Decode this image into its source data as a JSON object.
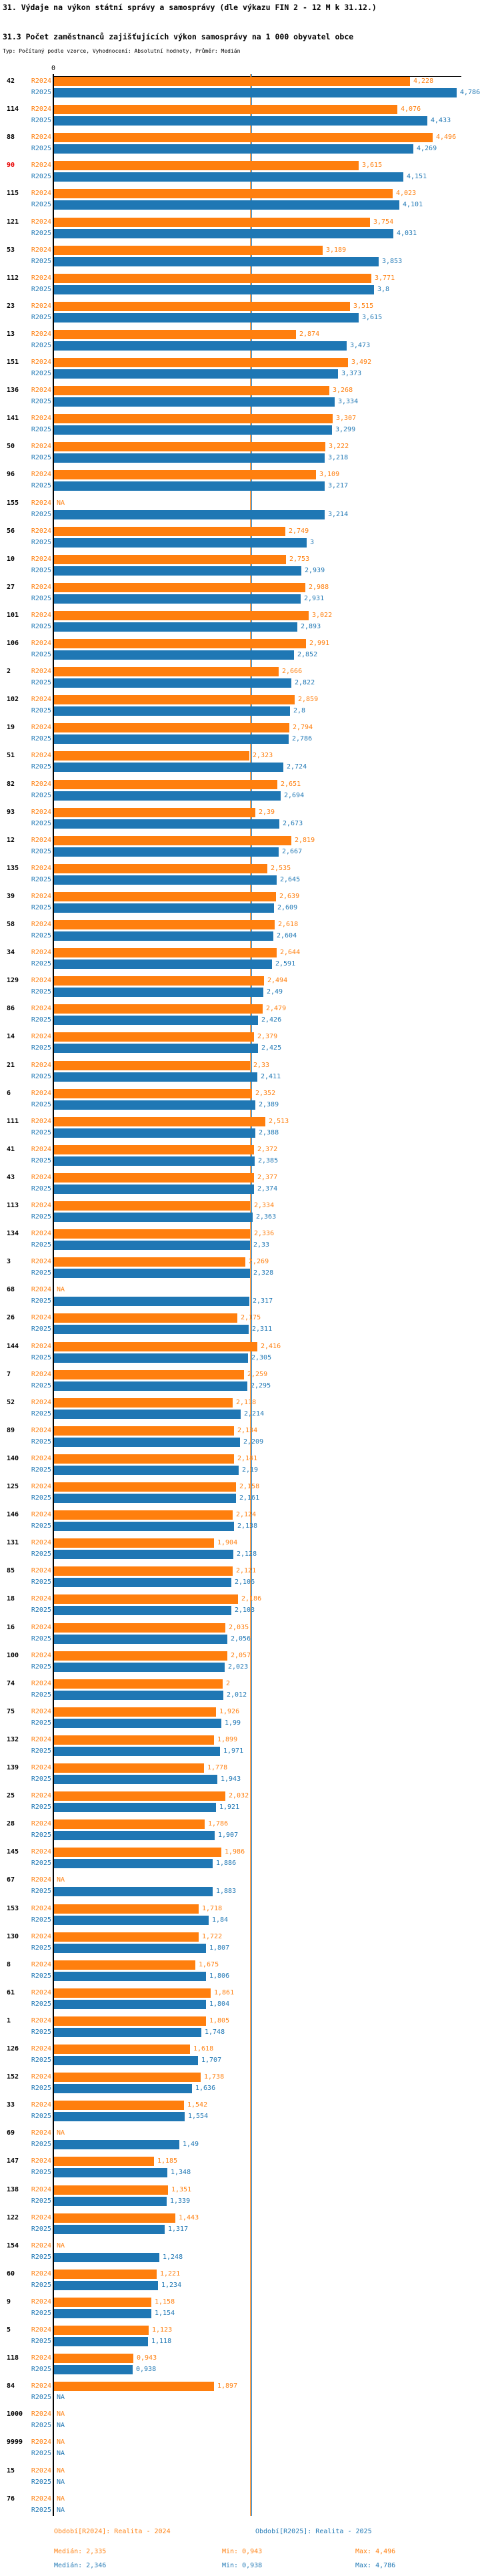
{
  "header": {
    "title": "31. Výdaje na výkon státní správy a samosprávy (dle výkazu FIN 2 - 12 M k 31.12.)",
    "subtitle": "31.3 Počet zaměstnanců zajišťujících výkon samosprávy na 1 000 obyvatel obce",
    "type_line": "Typ: Počítaný podle vzorce, Vyhodnocení: Absolutní hodnoty, Průměr: Medián"
  },
  "axis": {
    "zero_label": "0"
  },
  "colors": {
    "r2024_orange": "#ff7f0e",
    "r2025_blue": "#1f77b4",
    "highlight_red": "#e80000",
    "axis_black": "#000000"
  },
  "na_text": "NA",
  "chart_data": {
    "type": "bar",
    "orientation": "horizontal",
    "title": "31.3 Počet zaměstnanců zajišťujících výkon samosprávy na 1 000 obyvatel obce",
    "xlabel": "",
    "ylabel": "",
    "xlim": [
      0,
      5.3
    ],
    "grid": false,
    "sort": "descending by R2025",
    "highlighted_category": "90",
    "categories": [
      "42",
      "114",
      "88",
      "90",
      "115",
      "121",
      "53",
      "112",
      "23",
      "13",
      "151",
      "136",
      "141",
      "50",
      "96",
      "155",
      "56",
      "10",
      "27",
      "101",
      "106",
      "2",
      "102",
      "19",
      "51",
      "82",
      "93",
      "12",
      "135",
      "39",
      "58",
      "34",
      "129",
      "86",
      "14",
      "21",
      "6",
      "111",
      "41",
      "43",
      "113",
      "134",
      "3",
      "68",
      "26",
      "144",
      "7",
      "52",
      "89",
      "140",
      "125",
      "146",
      "131",
      "85",
      "18",
      "16",
      "100",
      "74",
      "75",
      "132",
      "139",
      "25",
      "28",
      "145",
      "67",
      "153",
      "130",
      "8",
      "61",
      "1",
      "126",
      "152",
      "33",
      "69",
      "147",
      "138",
      "122",
      "154",
      "60",
      "9",
      "5",
      "118",
      "84",
      "1000",
      "9999",
      "15",
      "76"
    ],
    "series": [
      {
        "name": "R2024",
        "period": "Realita - 2024",
        "color": "#ff7f0e",
        "values": [
          4.228,
          4.076,
          4.496,
          3.615,
          4.023,
          3.754,
          3.189,
          3.771,
          3.515,
          2.874,
          3.492,
          3.268,
          3.307,
          3.222,
          3.109,
          null,
          2.749,
          2.753,
          2.988,
          3.022,
          2.991,
          2.666,
          2.859,
          2.794,
          2.323,
          2.651,
          2.39,
          2.819,
          2.535,
          2.639,
          2.618,
          2.644,
          2.494,
          2.479,
          2.379,
          2.33,
          2.352,
          2.513,
          2.372,
          2.377,
          2.334,
          2.336,
          2.269,
          null,
          2.175,
          2.416,
          2.259,
          2.118,
          2.134,
          2.141,
          2.158,
          2.124,
          1.904,
          2.121,
          2.186,
          2.035,
          2.057,
          2.0,
          1.926,
          1.899,
          1.778,
          2.032,
          1.786,
          1.986,
          null,
          1.718,
          1.722,
          1.675,
          1.861,
          1.805,
          1.618,
          1.738,
          1.542,
          null,
          1.185,
          1.351,
          1.443,
          null,
          1.221,
          1.158,
          1.123,
          0.943,
          1.897,
          null,
          null,
          null,
          null
        ],
        "labels": [
          "4,228",
          "4,076",
          "4,496",
          "3,615",
          "4,023",
          "3,754",
          "3,189",
          "3,771",
          "3,515",
          "2,874",
          "3,492",
          "3,268",
          "3,307",
          "3,222",
          "3,109",
          "NA",
          "2,749",
          "2,753",
          "2,988",
          "3,022",
          "2,991",
          "2,666",
          "2,859",
          "2,794",
          "2,323",
          "2,651",
          "2,39",
          "2,819",
          "2,535",
          "2,639",
          "2,618",
          "2,644",
          "2,494",
          "2,479",
          "2,379",
          "2,33",
          "2,352",
          "2,513",
          "2,372",
          "2,377",
          "2,334",
          "2,336",
          "2,269",
          "NA",
          "2,175",
          "2,416",
          "2,259",
          "2,118",
          "2,134",
          "2,141",
          "2,158",
          "2,124",
          "1,904",
          "2,121",
          "2,186",
          "2,035",
          "2,057",
          "2",
          "1,926",
          "1,899",
          "1,778",
          "2,032",
          "1,786",
          "1,986",
          "NA",
          "1,718",
          "1,722",
          "1,675",
          "1,861",
          "1,805",
          "1,618",
          "1,738",
          "1,542",
          "NA",
          "1,185",
          "1,351",
          "1,443",
          "NA",
          "1,221",
          "1,158",
          "1,123",
          "0,943",
          "1,897",
          "NA",
          "NA",
          "NA",
          "NA"
        ]
      },
      {
        "name": "R2025",
        "period": "Realita - 2025",
        "color": "#1f77b4",
        "values": [
          4.786,
          4.433,
          4.269,
          4.151,
          4.101,
          4.031,
          3.853,
          3.8,
          3.615,
          3.473,
          3.373,
          3.334,
          3.299,
          3.218,
          3.217,
          3.214,
          3.0,
          2.939,
          2.931,
          2.893,
          2.852,
          2.822,
          2.8,
          2.786,
          2.724,
          2.694,
          2.673,
          2.667,
          2.645,
          2.609,
          2.604,
          2.591,
          2.49,
          2.426,
          2.425,
          2.411,
          2.389,
          2.388,
          2.385,
          2.374,
          2.363,
          2.33,
          2.328,
          2.317,
          2.311,
          2.305,
          2.295,
          2.214,
          2.209,
          2.19,
          2.161,
          2.138,
          2.128,
          2.106,
          2.103,
          2.056,
          2.023,
          2.012,
          1.99,
          1.971,
          1.943,
          1.921,
          1.907,
          1.886,
          1.883,
          1.84,
          1.807,
          1.806,
          1.804,
          1.748,
          1.707,
          1.636,
          1.554,
          1.49,
          1.348,
          1.339,
          1.317,
          1.248,
          1.234,
          1.154,
          1.118,
          0.938,
          null,
          null,
          null,
          null,
          null
        ],
        "labels": [
          "4,786",
          "4,433",
          "4,269",
          "4,151",
          "4,101",
          "4,031",
          "3,853",
          "3,8",
          "3,615",
          "3,473",
          "3,373",
          "3,334",
          "3,299",
          "3,218",
          "3,217",
          "3,214",
          "3",
          "2,939",
          "2,931",
          "2,893",
          "2,852",
          "2,822",
          "2,8",
          "2,786",
          "2,724",
          "2,694",
          "2,673",
          "2,667",
          "2,645",
          "2,609",
          "2,604",
          "2,591",
          "2,49",
          "2,426",
          "2,425",
          "2,411",
          "2,389",
          "2,388",
          "2,385",
          "2,374",
          "2,363",
          "2,33",
          "2,328",
          "2,317",
          "2,311",
          "2,305",
          "2,295",
          "2,214",
          "2,209",
          "2,19",
          "2,161",
          "2,138",
          "2,128",
          "2,106",
          "2,103",
          "2,056",
          "2,023",
          "2,012",
          "1,99",
          "1,971",
          "1,943",
          "1,921",
          "1,907",
          "1,886",
          "1,883",
          "1,84",
          "1,807",
          "1,806",
          "1,804",
          "1,748",
          "1,707",
          "1,636",
          "1,554",
          "1,49",
          "1,348",
          "1,339",
          "1,317",
          "1,248",
          "1,234",
          "1,154",
          "1,118",
          "0,938",
          "NA",
          "NA",
          "NA",
          "NA",
          "NA"
        ]
      }
    ],
    "medians": {
      "R2024": 2.335,
      "R2025": 2.346
    },
    "stats": {
      "R2024": {
        "median": 2.335,
        "min": 0.943,
        "max": 4.496
      },
      "R2025": {
        "median": 2.346,
        "min": 0.938,
        "max": 4.786
      }
    },
    "legend_position": "bottom"
  },
  "legend": {
    "r2024": {
      "period": "Období[R2024]: Realita - 2024",
      "median_text": "Medián: 2,335",
      "min_text": "Min: 0,943",
      "max_text": "Max: 4,496"
    },
    "r2025": {
      "period": "Období[R2025]: Realita - 2025",
      "median_text": "Medián: 2,346",
      "min_text": "Min: 0,938",
      "max_text": "Max: 4,786"
    }
  }
}
